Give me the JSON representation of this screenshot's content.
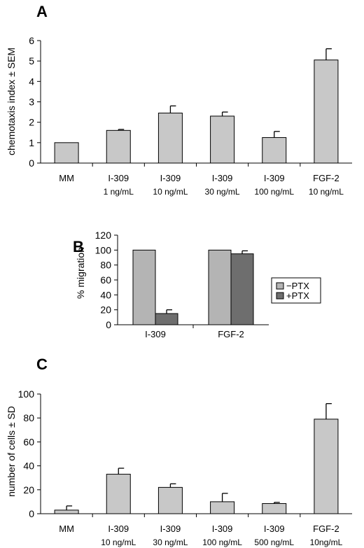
{
  "chart_data": [
    {
      "panel": "A",
      "type": "bar",
      "ylabel": "chemotaxis index ± SEM",
      "ylim": [
        0,
        6
      ],
      "yticks": [
        "0",
        "1",
        "2",
        "3",
        "4",
        "5",
        "6"
      ],
      "categories": [
        {
          "line1": "MM",
          "line2": ""
        },
        {
          "line1": "I-309",
          "line2": "1 ng/mL"
        },
        {
          "line1": "I-309",
          "line2": "10 ng/mL"
        },
        {
          "line1": "I-309",
          "line2": "30 ng/mL"
        },
        {
          "line1": "I-309",
          "line2": "100 ng/mL"
        },
        {
          "line1": "FGF-2",
          "line2": "10 ng/mL"
        }
      ],
      "values": [
        1.0,
        1.6,
        2.45,
        2.3,
        1.25,
        5.05
      ],
      "errors": [
        0,
        0.05,
        0.35,
        0.2,
        0.3,
        0.55
      ],
      "bar_color": "#c8c8c8"
    },
    {
      "panel": "B",
      "type": "bar",
      "ylabel": "% migration",
      "ylim": [
        0,
        120
      ],
      "yticks": [
        "0",
        "20",
        "40",
        "60",
        "80",
        "100",
        "120"
      ],
      "categories": [
        "I-309",
        "FGF-2"
      ],
      "series": [
        {
          "name": "−PTX",
          "values": [
            100,
            100
          ],
          "errors": [
            0,
            0
          ],
          "color": "#b4b4b4"
        },
        {
          "name": "+PTX",
          "values": [
            15,
            95
          ],
          "errors": [
            5,
            4
          ],
          "color": "#6e6e6e"
        }
      ],
      "legend": "right"
    },
    {
      "panel": "C",
      "type": "bar",
      "ylabel": "number of cells ± SD",
      "ylim": [
        0,
        100
      ],
      "yticks": [
        "0",
        "20",
        "40",
        "60",
        "80",
        "100"
      ],
      "categories": [
        {
          "line1": "MM",
          "line2": ""
        },
        {
          "line1": "I-309",
          "line2": "10 ng/mL"
        },
        {
          "line1": "I-309",
          "line2": "30 ng/mL"
        },
        {
          "line1": "I-309",
          "line2": "100 ng/mL"
        },
        {
          "line1": "I-309",
          "line2": "500 ng/mL"
        },
        {
          "line1": "FGF-2",
          "line2": "10ng/mL"
        }
      ],
      "values": [
        3,
        33,
        22,
        10,
        8.5,
        79
      ],
      "errors": [
        3.5,
        5,
        3,
        7,
        1,
        13
      ],
      "bar_color": "#c8c8c8"
    }
  ]
}
